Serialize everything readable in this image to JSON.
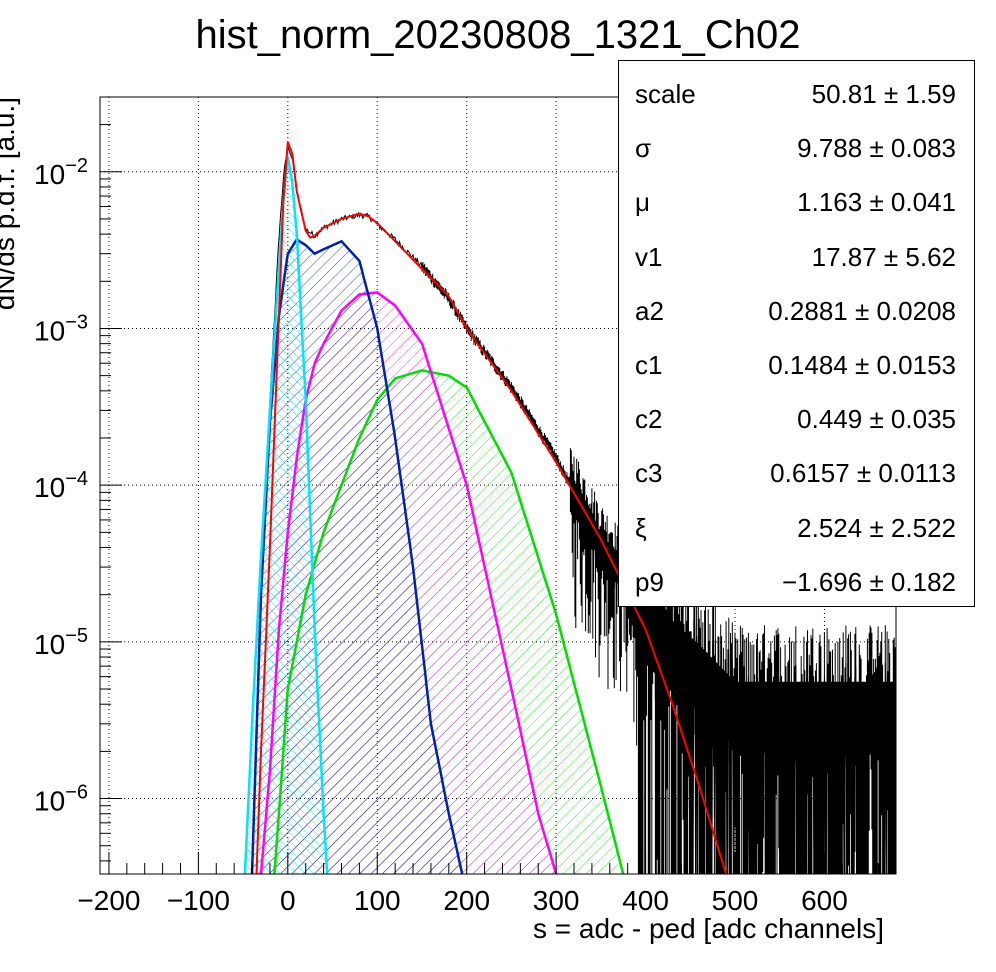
{
  "chart_data": {
    "type": "line",
    "title": "hist_norm_20230808_1321_Ch02",
    "xlabel": "s = adc - ped [adc channels]",
    "ylabel": "dN/ds p.d.f. [a.u.]",
    "x_scale": "linear",
    "y_scale": "log",
    "xlim": [
      -210,
      680
    ],
    "ylim": [
      3.3e-07,
      0.03
    ],
    "x_ticks": [
      -200,
      -100,
      0,
      100,
      200,
      300,
      400,
      500,
      600
    ],
    "x_tick_labels": [
      "−200",
      "−100",
      "0",
      "100",
      "200",
      "300",
      "400",
      "500",
      "600"
    ],
    "y_ticks": [
      1e-06,
      1e-05,
      0.0001,
      0.001,
      0.01
    ],
    "y_tick_labels": [
      {
        "base": "10",
        "exp": "−6"
      },
      {
        "base": "10",
        "exp": "−5"
      },
      {
        "base": "10",
        "exp": "−4"
      },
      {
        "base": "10",
        "exp": "−3"
      },
      {
        "base": "10",
        "exp": "−2"
      }
    ],
    "grid": true,
    "colors": {
      "data": "#000000",
      "total_fit": "#ff0000",
      "pedestal": "#00e5ff",
      "one_pe": "#0022aa",
      "two_pe": "#ff00ff",
      "three_pe": "#00dd00"
    },
    "series": [
      {
        "role": "data-histogram",
        "color": "#000000",
        "x": [
          -30,
          -20,
          -10,
          -5,
          0,
          5,
          10,
          20,
          30,
          40,
          60,
          80,
          90,
          100,
          120,
          150,
          180,
          200,
          250,
          300,
          350,
          380,
          400,
          430,
          460,
          500,
          550,
          600,
          650,
          680
        ],
        "y": [
          2e-05,
          0.00035,
          0.0038,
          0.009,
          0.015,
          0.012,
          0.0075,
          0.0043,
          0.0039,
          0.0044,
          0.005,
          0.0053,
          0.0052,
          0.0046,
          0.0037,
          0.0025,
          0.00155,
          0.001,
          0.00042,
          0.00015,
          4.2e-05,
          2.5e-05,
          1.5e-05,
          1e-05,
          7e-06,
          4e-06,
          4e-06,
          4e-06,
          4e-06,
          4e-06
        ]
      },
      {
        "role": "total-fit",
        "color": "#ff0000",
        "x": [
          -35,
          -30,
          -20,
          -10,
          -5,
          0,
          5,
          10,
          20,
          25,
          30,
          40,
          60,
          80,
          90,
          100,
          120,
          150,
          180,
          200,
          250,
          300,
          350,
          400,
          430,
          460,
          490
        ],
        "y": [
          3.3e-07,
          2e-06,
          4e-05,
          0.0012,
          0.0065,
          0.0155,
          0.013,
          0.0075,
          0.0042,
          0.0038,
          0.0039,
          0.0044,
          0.005,
          0.0054,
          0.0052,
          0.0047,
          0.0036,
          0.0024,
          0.0016,
          0.001,
          0.0004,
          0.00014,
          4.5e-05,
          1.2e-05,
          4e-06,
          1.2e-06,
          3.3e-07
        ]
      },
      {
        "role": "pedestal-component",
        "color": "#00e5ff",
        "x": [
          -48,
          -40,
          -30,
          -20,
          -10,
          -5,
          0,
          5,
          10,
          20,
          30,
          40,
          44
        ],
        "y": [
          3.3e-07,
          3e-06,
          3.5e-05,
          0.0003,
          0.0025,
          0.0065,
          0.0125,
          0.0085,
          0.004,
          0.00035,
          1.2e-05,
          8e-07,
          3.3e-07
        ]
      },
      {
        "role": "1pe-component",
        "color": "#0022aa",
        "x": [
          -40,
          -30,
          -20,
          -10,
          0,
          10,
          20,
          30,
          40,
          60,
          80,
          100,
          120,
          140,
          160,
          180,
          195
        ],
        "y": [
          3.3e-07,
          2e-05,
          0.00025,
          0.0012,
          0.003,
          0.0037,
          0.0034,
          0.003,
          0.0032,
          0.0036,
          0.0027,
          0.001,
          0.0002,
          3e-05,
          3e-06,
          8e-07,
          3.3e-07
        ]
      },
      {
        "role": "2pe-component",
        "color": "#ff00ff",
        "x": [
          -30,
          -20,
          -10,
          0,
          10,
          20,
          30,
          40,
          60,
          80,
          100,
          120,
          150,
          200,
          250,
          280,
          300
        ],
        "y": [
          3.3e-07,
          1.5e-06,
          1.2e-05,
          5e-05,
          0.00015,
          0.00035,
          0.0006,
          0.0008,
          0.0013,
          0.00165,
          0.0017,
          0.0014,
          0.0008,
          0.0001,
          5e-06,
          8e-07,
          3.3e-07
        ]
      },
      {
        "role": "3pe-component",
        "color": "#00dd00",
        "x": [
          -15,
          -10,
          0,
          20,
          40,
          60,
          80,
          100,
          120,
          150,
          180,
          200,
          250,
          300,
          350,
          375
        ],
        "y": [
          3.3e-07,
          8e-07,
          5e-06,
          2e-05,
          5e-05,
          0.0001,
          0.0002,
          0.00035,
          0.00048,
          0.00054,
          0.0005,
          0.00042,
          0.00012,
          1.5e-05,
          1.2e-06,
          3.3e-07
        ]
      }
    ]
  },
  "stats": [
    {
      "name": "scale",
      "value": "50.81 ± 1.59"
    },
    {
      "name": "σ",
      "value": "9.788 ± 0.083"
    },
    {
      "name": "μ",
      "value": "1.163 ± 0.041"
    },
    {
      "name": "v1",
      "value": "17.87 ± 5.62"
    },
    {
      "name": "a2",
      "value": "0.2881 ± 0.0208"
    },
    {
      "name": "c1",
      "value": "0.1484 ± 0.0153"
    },
    {
      "name": "c2",
      "value": "0.449 ± 0.035"
    },
    {
      "name": "c3",
      "value": "0.6157 ± 0.0113"
    },
    {
      "name": "ξ",
      "value": "2.524 ± 2.522"
    },
    {
      "name": "p9",
      "value": "−1.696 ± 0.182"
    }
  ]
}
